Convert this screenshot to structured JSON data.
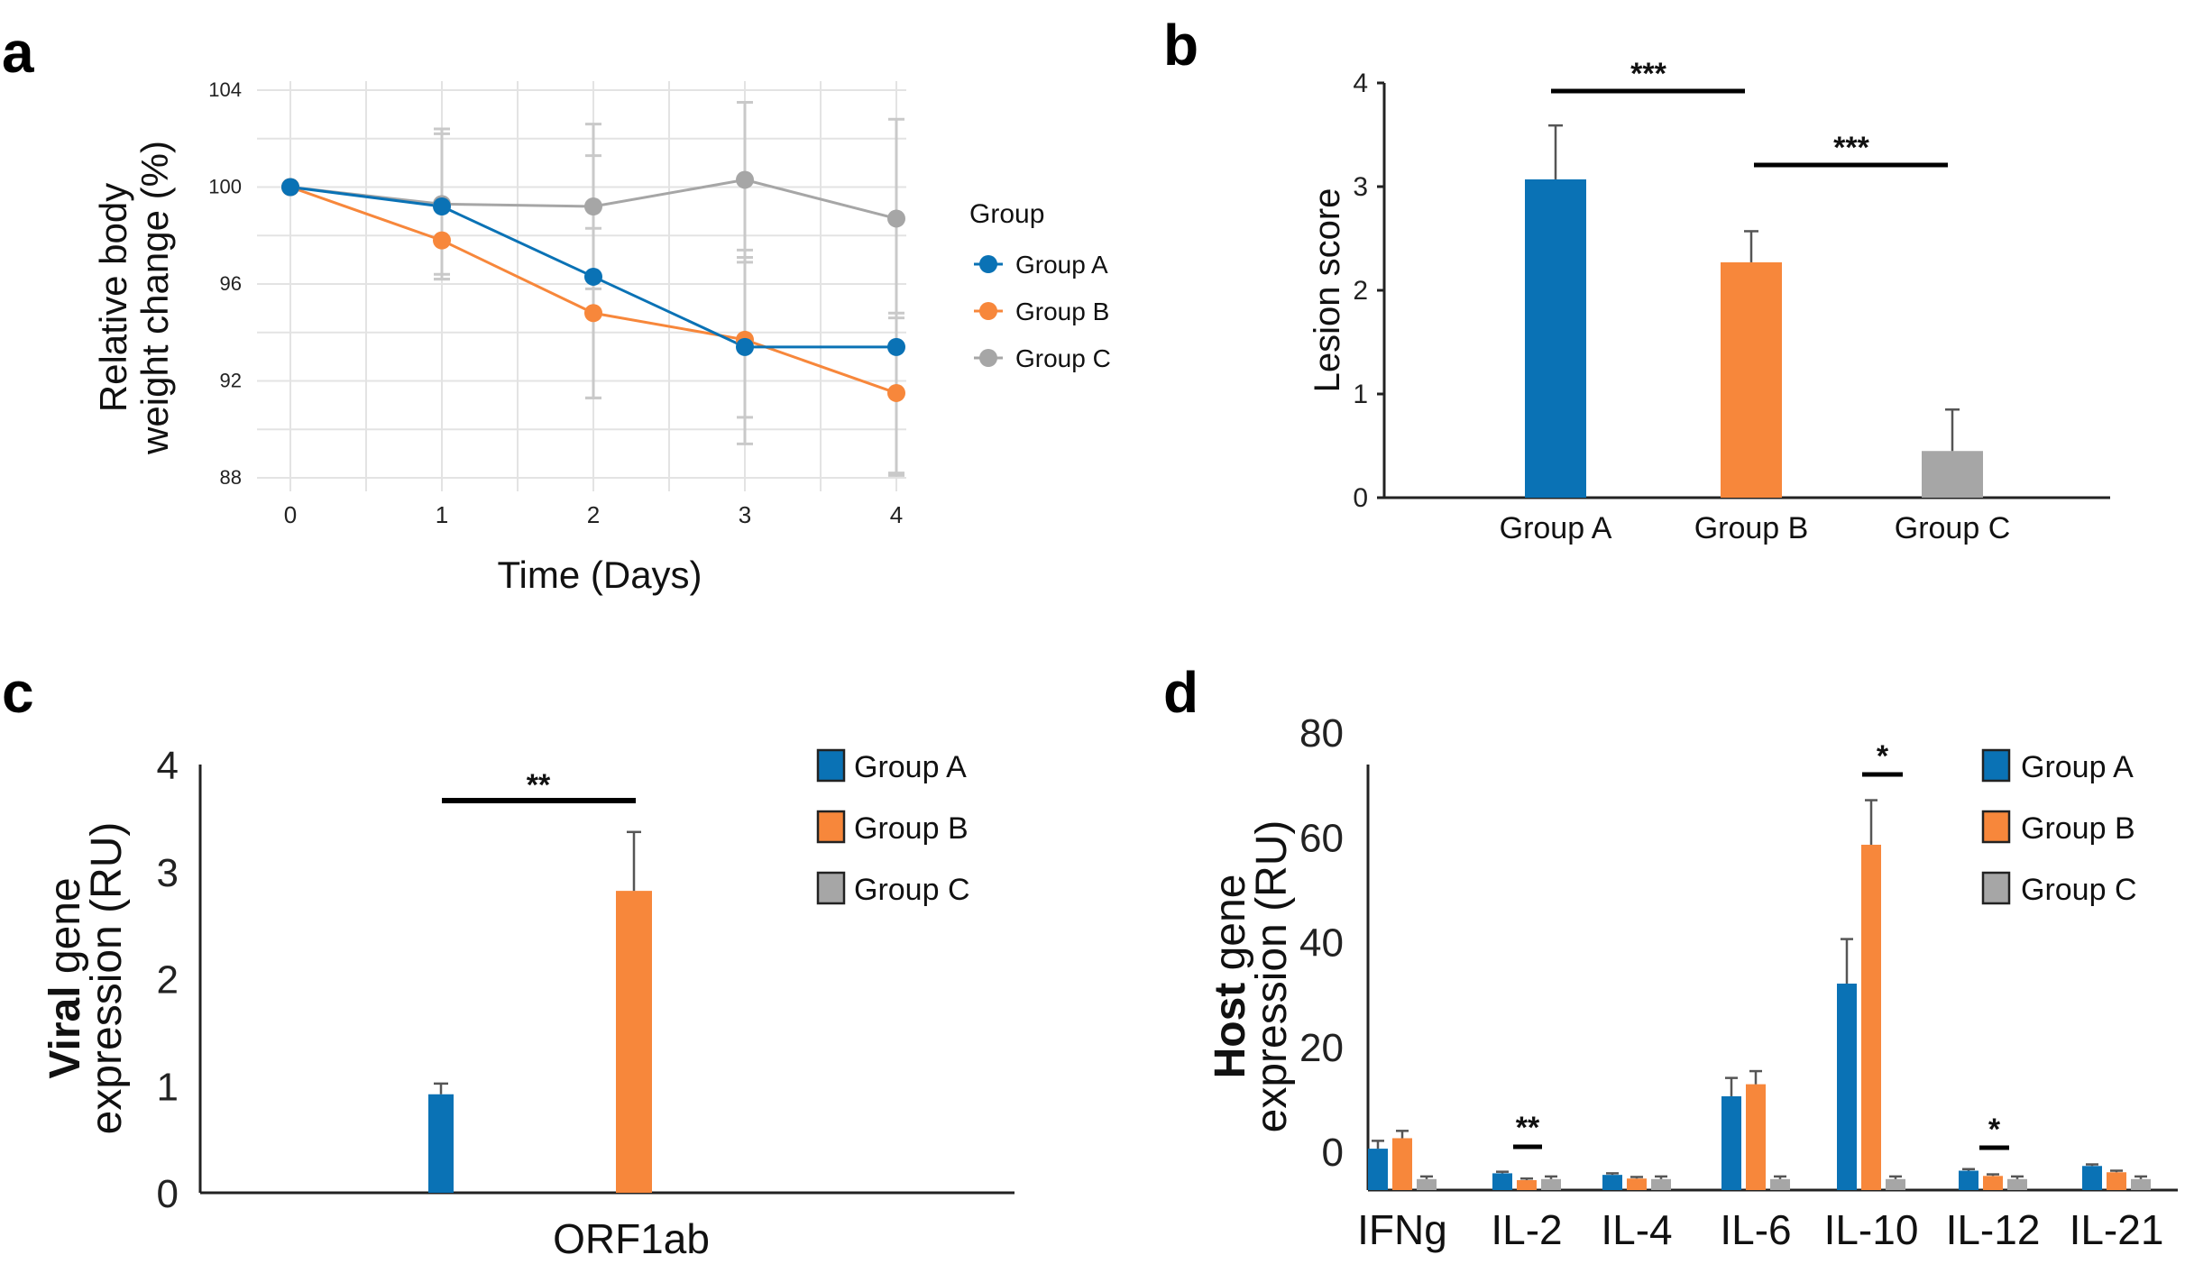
{
  "colors": {
    "groupA": "#0a72b5",
    "groupB": "#f7873b",
    "groupC": "#a6a6a6"
  },
  "panels": {
    "a": "a",
    "b": "b",
    "c": "c",
    "d": "d"
  },
  "chart_data": [
    {
      "panel": "a",
      "type": "line",
      "xlabel": "Time (Days)",
      "ylabel_line1": "Relative body",
      "ylabel_line2": "weight change (%)",
      "x": [
        0,
        1,
        2,
        3,
        4
      ],
      "x_ticks": [
        "0",
        "1",
        "2",
        "3",
        "4"
      ],
      "ylim": [
        88,
        104
      ],
      "y_ticks": [
        "88",
        "92",
        "96",
        "100",
        "104"
      ],
      "legend_title": "Group",
      "legend_position": "right",
      "series": [
        {
          "name": "Group A",
          "values": [
            100,
            99.2,
            96.3,
            93.4,
            93.4
          ],
          "err": [
            0,
            3.0,
            5.0,
            4.0,
            5.3
          ]
        },
        {
          "name": "Group B",
          "values": [
            100,
            97.8,
            94.8,
            93.7,
            91.5
          ],
          "err": [
            0,
            1.4,
            3.5,
            3.2,
            3.3
          ]
        },
        {
          "name": "Group C",
          "values": [
            100,
            99.3,
            99.2,
            100.3,
            98.7
          ],
          "err": [
            0,
            3.1,
            3.4,
            3.2,
            4.1
          ]
        }
      ]
    },
    {
      "panel": "b",
      "type": "bar",
      "ylabel": "Lesion score",
      "categories": [
        "Group A",
        "Group B",
        "Group C"
      ],
      "values": [
        3.07,
        2.27,
        0.45
      ],
      "err": [
        0.52,
        0.3,
        0.4
      ],
      "ylim": [
        0,
        4
      ],
      "y_ticks": [
        "0",
        "1",
        "2",
        "3",
        "4"
      ],
      "significance": [
        {
          "label": "***",
          "from": 0,
          "to": 1
        },
        {
          "label": "***",
          "from": 1,
          "to": 2
        }
      ]
    },
    {
      "panel": "c",
      "type": "bar",
      "ylabel_bold": "Viral",
      "ylabel_rest": " gene",
      "ylabel_line2": "expression (RU)",
      "categories": [
        "ORF1ab"
      ],
      "series": [
        {
          "name": "Group A",
          "values": [
            0.92
          ],
          "err": [
            0.1
          ]
        },
        {
          "name": "Group B",
          "values": [
            2.82
          ],
          "err": [
            0.55
          ]
        },
        {
          "name": "Group C",
          "values": [
            0.0
          ],
          "err": [
            0
          ]
        }
      ],
      "ylim": [
        0,
        4
      ],
      "y_ticks": [
        "0",
        "1",
        "2",
        "3",
        "4"
      ],
      "legend_position": "top-right",
      "significance": [
        {
          "label": "**"
        }
      ]
    },
    {
      "panel": "d",
      "type": "bar",
      "ylabel_bold": "Host",
      "ylabel_rest": " gene",
      "ylabel_line2": "expression (RU)",
      "categories": [
        "IFNg",
        "IL-2",
        "IL-4",
        "IL-6",
        "IL-10",
        "IL-12",
        "IL-21"
      ],
      "series": [
        {
          "name": "Group A",
          "values": [
            0.5,
            -4.2,
            -4.5,
            10.5,
            32.0,
            -3.7,
            -2.8
          ],
          "err": [
            1.5,
            0.3,
            0.3,
            3.5,
            8.5,
            0.3,
            0.3
          ]
        },
        {
          "name": "Group B",
          "values": [
            2.5,
            -5.5,
            -5.2,
            12.8,
            58.5,
            -4.7,
            -4.0
          ],
          "err": [
            1.4,
            0.3,
            0.3,
            2.5,
            8.5,
            0.3,
            0.3
          ]
        },
        {
          "name": "Group C",
          "values": [
            -5.3,
            -5.3,
            -5.3,
            -5.3,
            -5.3,
            -5.3,
            -5.3
          ],
          "err": [
            0.5,
            0.5,
            0.5,
            0.5,
            0.5,
            0.5,
            0.5
          ]
        }
      ],
      "ylim": [
        -7,
        80
      ],
      "y_ticks": [
        "0",
        "20",
        "40",
        "60",
        "80"
      ],
      "legend_position": "top-right",
      "significance": [
        {
          "label": "**",
          "category": 1
        },
        {
          "label": "*",
          "category": 4
        },
        {
          "label": "*",
          "category": 5
        }
      ]
    }
  ]
}
